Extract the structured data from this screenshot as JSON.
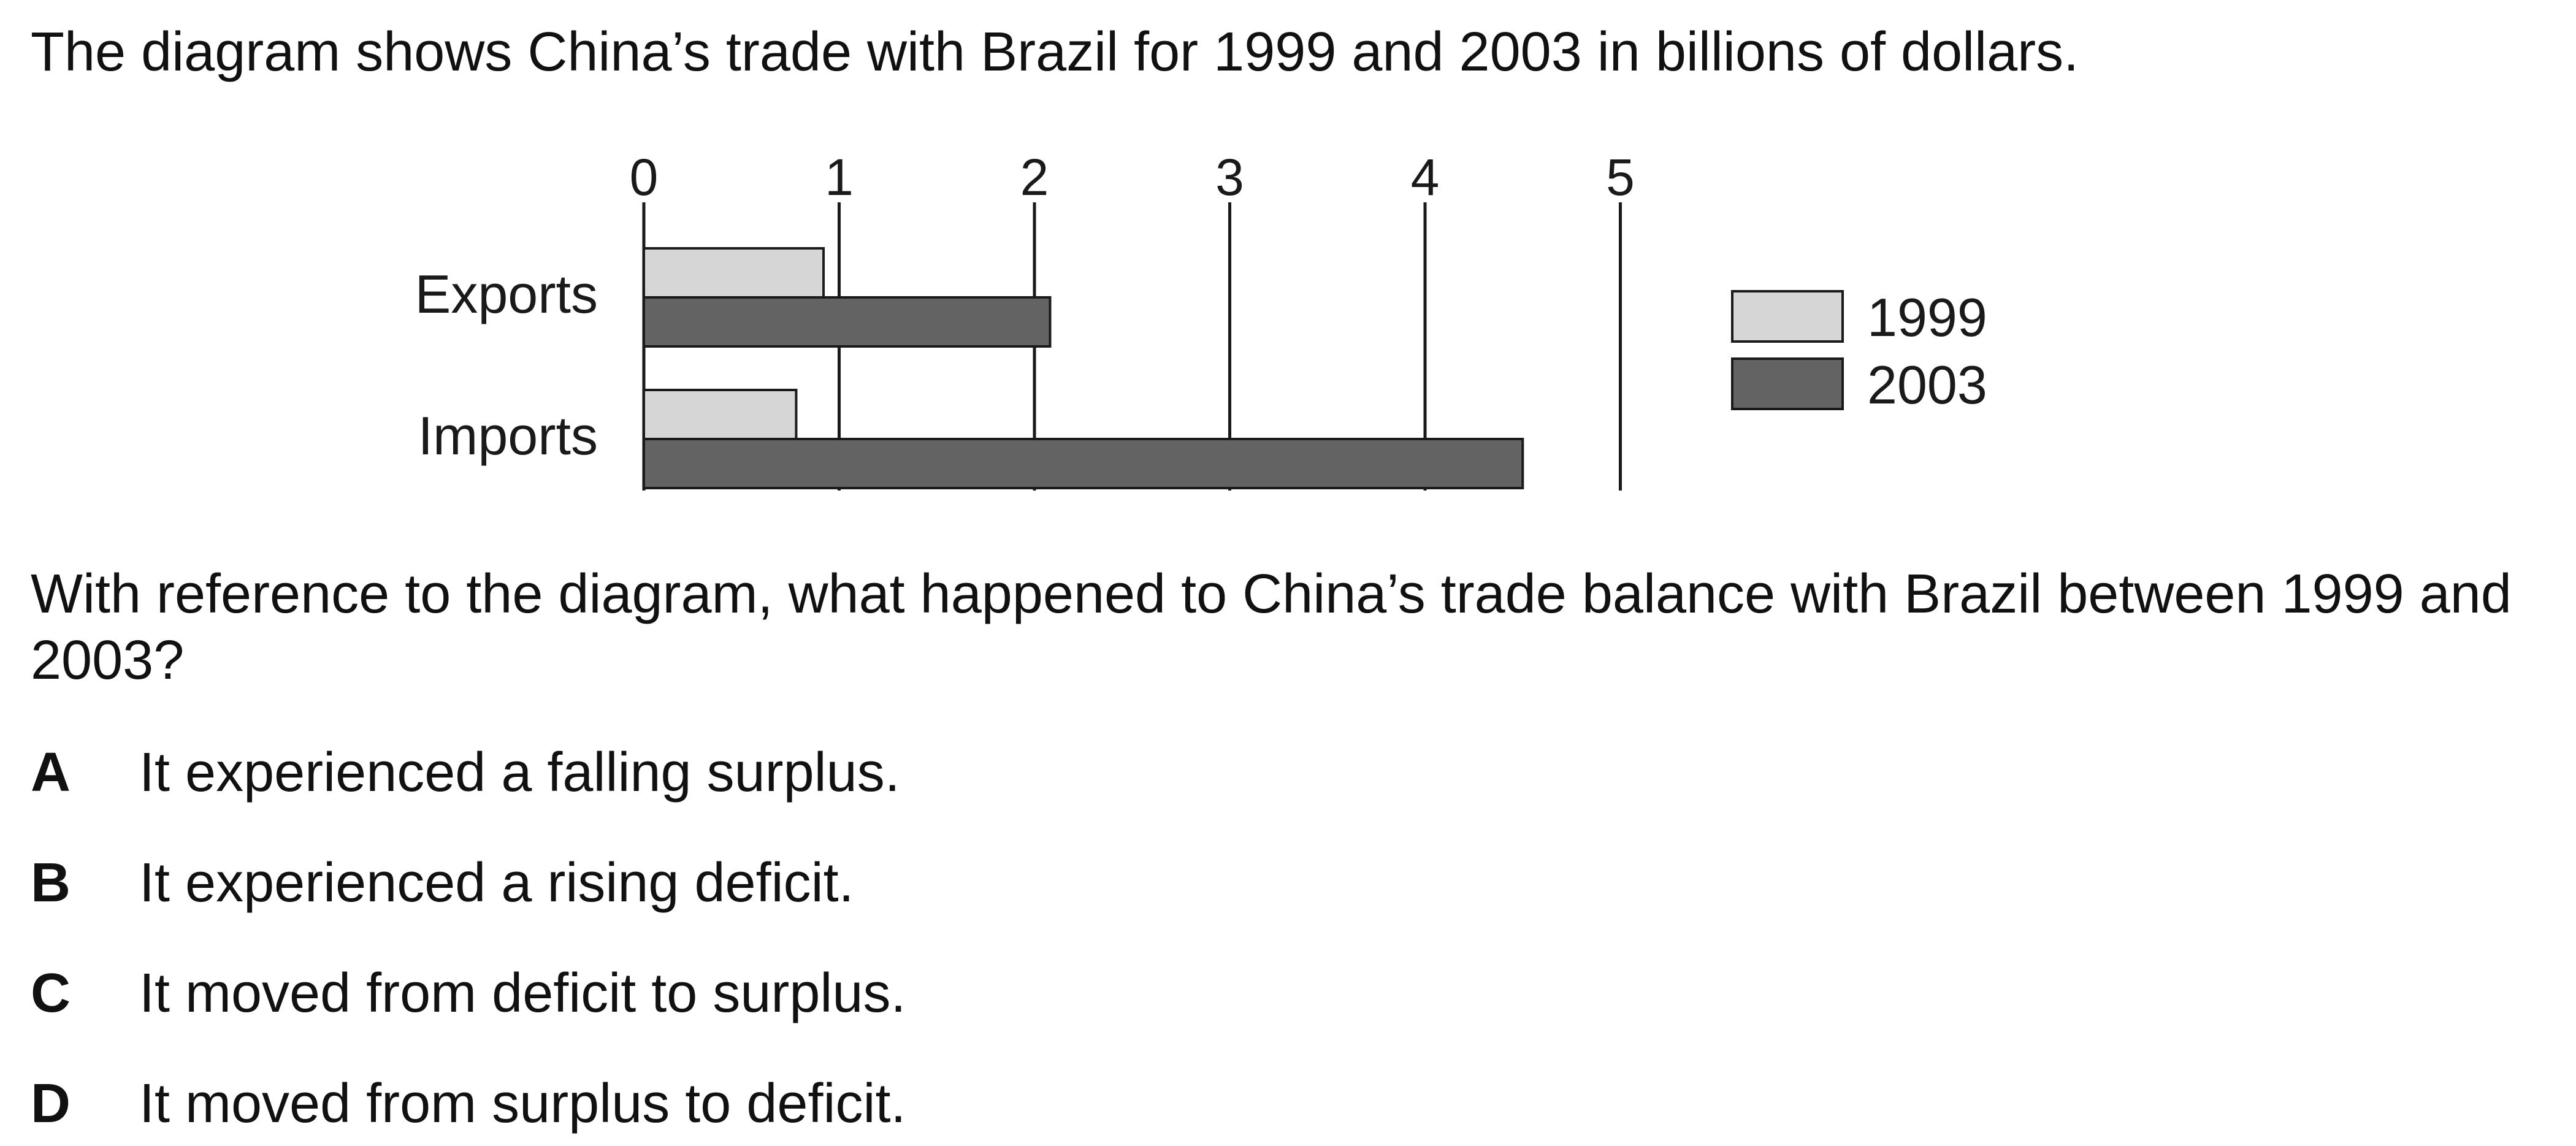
{
  "intro_text": "The diagram shows China’s trade with Brazil for 1999 and 2003 in billions of dollars.",
  "chart_data": {
    "type": "bar",
    "orientation": "horizontal",
    "categories": [
      "Exports",
      "Imports"
    ],
    "series": [
      {
        "name": "1999",
        "values": [
          0.92,
          0.78
        ],
        "color": "#d6d6d6"
      },
      {
        "name": "2003",
        "values": [
          2.08,
          4.5
        ],
        "color": "#636363"
      }
    ],
    "xlim": [
      0,
      5
    ],
    "xticks": [
      "0",
      "1",
      "2",
      "3",
      "4",
      "5"
    ],
    "grid": true,
    "legend_position": "right",
    "xlabel": "",
    "ylabel": "",
    "title": ""
  },
  "question": "With reference to the diagram, what happened to China’s trade balance with Brazil between 1999 and 2003?",
  "options": [
    {
      "letter": "A",
      "text": "It experienced a falling surplus."
    },
    {
      "letter": "B",
      "text": "It experienced a rising deficit."
    },
    {
      "letter": "C",
      "text": "It moved from deficit to surplus."
    },
    {
      "letter": "D",
      "text": "It moved from surplus to deficit."
    }
  ]
}
